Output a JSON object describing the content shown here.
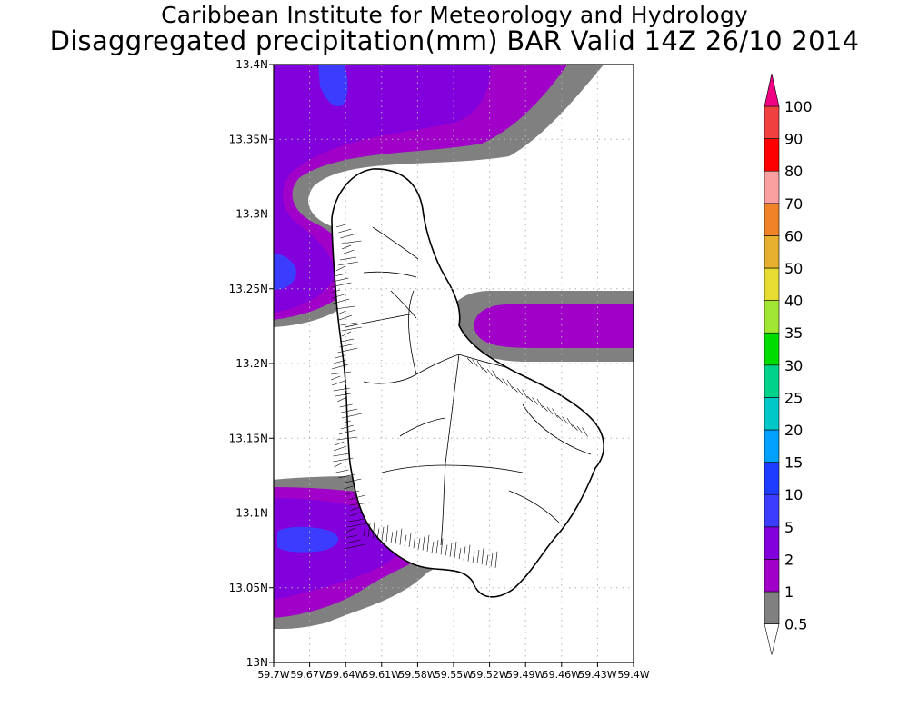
{
  "title": {
    "line1": "Caribbean Institute for Meteorology and Hydrology",
    "line2": "Disaggregated precipitation(mm) BAR Valid 14Z 26/10 2014"
  },
  "map": {
    "lat_labels": [
      "13.4N",
      "13.35N",
      "13.3N",
      "13.25N",
      "13.2N",
      "13.15N",
      "13.1N",
      "13.05N",
      "13N"
    ],
    "lon_labels": [
      "59.7W",
      "59.67W",
      "59.64W",
      "59.61W",
      "59.58W",
      "59.55W",
      "59.52W",
      "59.49W",
      "59.46W",
      "59.43W",
      "59.4W"
    ],
    "lat_range": [
      13.0,
      13.4
    ],
    "lon_range": [
      -59.7,
      -59.4
    ],
    "grid": "dotted"
  },
  "colorbar": {
    "labels": [
      "0.5",
      "1",
      "2",
      "5",
      "10",
      "15",
      "20",
      "25",
      "30",
      "35",
      "40",
      "50",
      "60",
      "70",
      "80",
      "90",
      "100"
    ],
    "colors": [
      "#808080",
      "#a000c8",
      "#8200dc",
      "#3c3cff",
      "#1e3cff",
      "#00a0ff",
      "#00c8c8",
      "#00d28c",
      "#00dc00",
      "#a0e632",
      "#e6dc32",
      "#e6af2d",
      "#f08228",
      "#faa0a0",
      "#ff0000",
      "#f04040",
      "#f00082"
    ]
  },
  "colors": {
    "precip_0_5": "#808080",
    "precip_1": "#a000c8",
    "precip_2": "#8200dc",
    "precip_5": "#3c3cff"
  }
}
